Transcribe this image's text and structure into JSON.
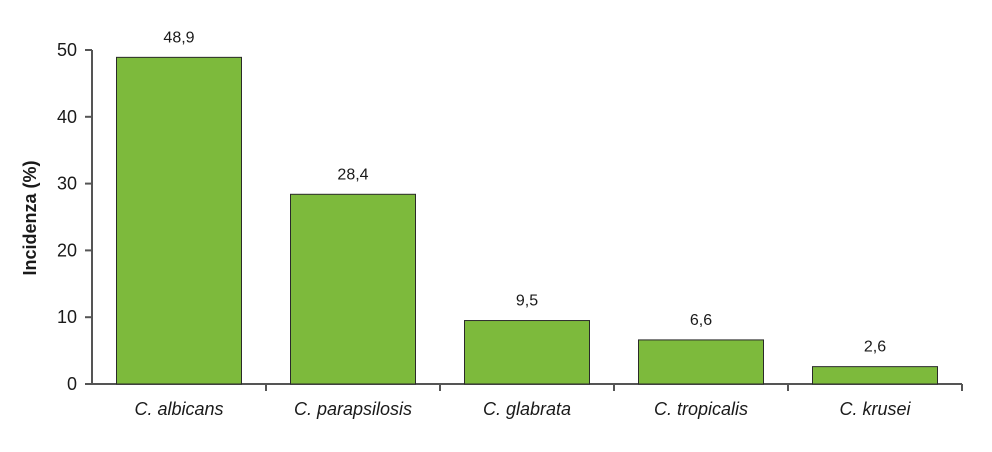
{
  "chart_data": {
    "type": "bar",
    "title": "",
    "xlabel": "",
    "ylabel": "Incidenza (%)",
    "categories": [
      "C. albicans",
      "C. parapsilosis",
      "C. glabrata",
      "C. tropicalis",
      "C. krusei"
    ],
    "values": [
      48.9,
      28.4,
      9.5,
      6.6,
      2.6
    ],
    "data_labels": [
      "48,9",
      "28,4",
      "9,5",
      "6,6",
      "2,6"
    ],
    "ylim": [
      0,
      50
    ],
    "yticks": [
      0,
      10,
      20,
      30,
      40,
      50
    ],
    "ytick_labels": [
      "0",
      "10",
      "20",
      "30",
      "40",
      "50"
    ],
    "grid": false,
    "legend": "none",
    "colors": {
      "bar_fill": "#7dba3c",
      "bar_stroke": "#2a2a2a",
      "axis": "#555555",
      "text": "#1a1a1a"
    }
  }
}
